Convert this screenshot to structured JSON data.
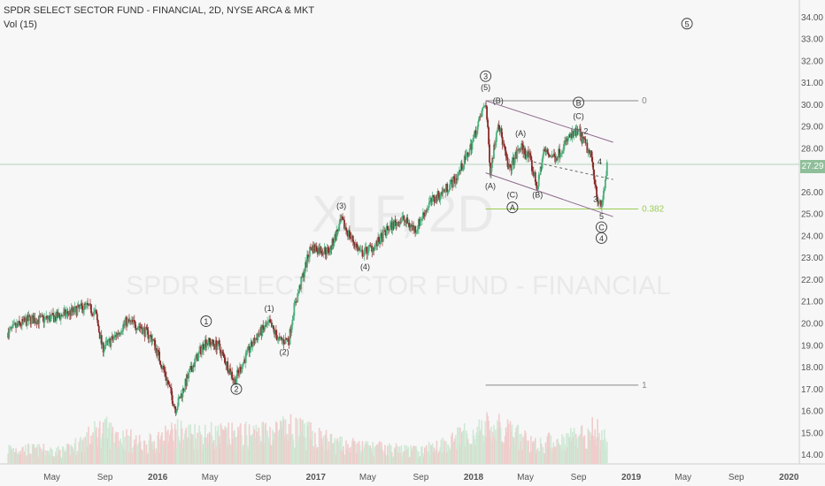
{
  "header": {
    "symbol_line": "SPDR SELECT SECTOR FUND - FINANCIAL, 2D, NYSE ARCA & MKT",
    "volume_line": "Vol (15)"
  },
  "watermark": {
    "ticker": "XLF, 2D",
    "name": "SPDR SELECT SECTOR FUND - FINANCIAL"
  },
  "last_price_label": "27.29",
  "colors": {
    "up": "#4caf7d",
    "down": "#8b2b2b",
    "volume_up": "#cfe8d5",
    "volume_down": "#f0cccc",
    "channel": "#8e6a8e",
    "fib": "#9acd52",
    "baseline": "#aaaaaa"
  },
  "chart_data": {
    "type": "candlestick",
    "title": "SPDR SELECT SECTOR FUND - FINANCIAL, 2D, NYSE ARCA & MKT",
    "ylim": [
      13.8,
      34.6
    ],
    "y_ticks": [
      "14.00",
      "15.00",
      "16.00",
      "17.00",
      "18.00",
      "19.00",
      "20.00",
      "21.00",
      "22.00",
      "23.00",
      "24.00",
      "25.00",
      "26.00",
      "27.00",
      "28.00",
      "29.00",
      "30.00",
      "31.00",
      "32.00",
      "33.00",
      "34.00"
    ],
    "x_ticks": [
      "May",
      "Sep",
      "2016",
      "May",
      "Sep",
      "2017",
      "May",
      "Sep",
      "2018",
      "May",
      "Sep",
      "2019",
      "May",
      "Sep",
      "2020"
    ],
    "price_path": [
      [
        "2015-01-20",
        19.6
      ],
      [
        "2015-02-10",
        19.9
      ],
      [
        "2015-03-10",
        20.2
      ],
      [
        "2015-04-10",
        20.2
      ],
      [
        "2015-05-10",
        20.3
      ],
      [
        "2015-06-10",
        20.5
      ],
      [
        "2015-07-20",
        20.8
      ],
      [
        "2015-08-10",
        20.5
      ],
      [
        "2015-08-26",
        18.9
      ],
      [
        "2015-09-20",
        19.3
      ],
      [
        "2015-10-20",
        20.1
      ],
      [
        "2015-11-20",
        19.9
      ],
      [
        "2015-12-20",
        19.3
      ],
      [
        "2016-01-20",
        17.6
      ],
      [
        "2016-02-11",
        16.1
      ],
      [
        "2016-03-20",
        18.0
      ],
      [
        "2016-04-20",
        19.2
      ],
      [
        "2016-05-20",
        19.0
      ],
      [
        "2016-06-27",
        17.4
      ],
      [
        "2016-07-25",
        18.6
      ],
      [
        "2016-08-20",
        19.5
      ],
      [
        "2016-09-15",
        20.0
      ],
      [
        "2016-10-10",
        19.2
      ],
      [
        "2016-10-31",
        19.3
      ],
      [
        "2016-11-10",
        20.6
      ],
      [
        "2016-12-20",
        23.5
      ],
      [
        "2017-02-01",
        23.3
      ],
      [
        "2017-03-01",
        24.7
      ],
      [
        "2017-04-15",
        23.2
      ],
      [
        "2017-05-20",
        23.6
      ],
      [
        "2017-06-20",
        24.4
      ],
      [
        "2017-07-20",
        24.8
      ],
      [
        "2017-08-20",
        24.3
      ],
      [
        "2017-09-20",
        25.5
      ],
      [
        "2017-10-20",
        26.0
      ],
      [
        "2017-11-20",
        26.6
      ],
      [
        "2017-12-20",
        27.8
      ],
      [
        "2018-01-10",
        29.0
      ],
      [
        "2018-01-29",
        30.2
      ],
      [
        "2018-02-09",
        27.0
      ],
      [
        "2018-02-27",
        29.3
      ],
      [
        "2018-03-23",
        27.0
      ],
      [
        "2018-04-20",
        28.1
      ],
      [
        "2018-05-10",
        27.6
      ],
      [
        "2018-05-29",
        26.2
      ],
      [
        "2018-06-12",
        27.9
      ],
      [
        "2018-07-10",
        27.6
      ],
      [
        "2018-08-10",
        28.5
      ],
      [
        "2018-09-01",
        28.8
      ],
      [
        "2018-10-01",
        27.6
      ],
      [
        "2018-10-16",
        25.6
      ],
      [
        "2018-10-24",
        25.3
      ],
      [
        "2018-11-07",
        27.3
      ]
    ],
    "volume_path": [
      [
        "2015-01-20",
        0.25
      ],
      [
        "2015-06-01",
        0.2
      ],
      [
        "2015-08-26",
        0.55
      ],
      [
        "2015-12-01",
        0.3
      ],
      [
        "2016-02-11",
        0.5
      ],
      [
        "2016-06-27",
        0.45
      ],
      [
        "2016-11-10",
        0.55
      ],
      [
        "2017-03-01",
        0.3
      ],
      [
        "2017-09-01",
        0.2
      ],
      [
        "2018-02-09",
        0.6
      ],
      [
        "2018-06-01",
        0.3
      ],
      [
        "2018-10-16",
        0.55
      ],
      [
        "2018-11-07",
        0.35
      ]
    ],
    "wave_labels": [
      {
        "text": "1",
        "date": "2016-04-22",
        "price": 20.0,
        "circled": true
      },
      {
        "text": "2",
        "date": "2016-07-01",
        "price": 16.9,
        "circled": true
      },
      {
        "text": "(1)",
        "date": "2016-09-15",
        "price": 20.6,
        "circled": false
      },
      {
        "text": "(2)",
        "date": "2016-10-20",
        "price": 18.6,
        "circled": false
      },
      {
        "text": "(3)",
        "date": "2017-03-01",
        "price": 25.3,
        "circled": false
      },
      {
        "text": "(4)",
        "date": "2017-04-25",
        "price": 22.5,
        "circled": false
      },
      {
        "text": "3",
        "date": "2018-01-29",
        "price": 31.2,
        "circled": true
      },
      {
        "text": "(5)",
        "date": "2018-01-29",
        "price": 30.7,
        "circled": false
      },
      {
        "text": "(A)",
        "date": "2018-02-09",
        "price": 26.2,
        "circled": false
      },
      {
        "text": "(B)",
        "date": "2018-02-27",
        "price": 30.1,
        "circled": false
      },
      {
        "text": "(C)",
        "date": "2018-04-01",
        "price": 25.8,
        "circled": false
      },
      {
        "text": "A",
        "date": "2018-04-01",
        "price": 25.2,
        "circled": true
      },
      {
        "text": "(A)",
        "date": "2018-04-20",
        "price": 28.6,
        "circled": false
      },
      {
        "text": "(B)",
        "date": "2018-05-29",
        "price": 25.8,
        "circled": false
      },
      {
        "text": "B",
        "date": "2018-09-01",
        "price": 30.0,
        "circled": true
      },
      {
        "text": "(C)",
        "date": "2018-09-01",
        "price": 29.4,
        "circled": false
      },
      {
        "text": "2",
        "date": "2018-09-18",
        "price": 28.7,
        "circled": false
      },
      {
        "text": "3",
        "date": "2018-10-10",
        "price": 25.6,
        "circled": false
      },
      {
        "text": "4",
        "date": "2018-10-20",
        "price": 27.3,
        "circled": false
      },
      {
        "text": "5",
        "date": "2018-10-24",
        "price": 24.8,
        "circled": false
      },
      {
        "text": "C",
        "date": "2018-10-24",
        "price": 24.3,
        "circled": true
      },
      {
        "text": "4",
        "date": "2018-10-24",
        "price": 23.8,
        "circled": true
      },
      {
        "text": "5",
        "date": "2019-05-10",
        "price": 33.6,
        "circled": true
      }
    ],
    "annotations": [
      {
        "kind": "hline",
        "label": "0",
        "start": "2018-01-29",
        "end": "2019-01-01",
        "price": 30.2
      },
      {
        "kind": "hline",
        "label": "0.382",
        "start": "2018-01-29",
        "end": "2019-01-01",
        "price": 25.25
      },
      {
        "kind": "hline",
        "label": "1",
        "start": "2018-01-29",
        "end": "2019-01-01",
        "price": 17.2
      },
      {
        "kind": "trend",
        "start": [
          "2018-01-29",
          30.2
        ],
        "end": [
          "2018-11-20",
          28.3
        ]
      },
      {
        "kind": "trend",
        "start": [
          "2018-01-29",
          26.9
        ],
        "end": [
          "2018-11-20",
          24.9
        ]
      },
      {
        "kind": "dashed",
        "start": [
          "2018-05-20",
          27.4
        ],
        "end": [
          "2018-11-20",
          26.6
        ]
      }
    ],
    "last_price": 27.29,
    "grid": false,
    "legend": "top-left"
  }
}
